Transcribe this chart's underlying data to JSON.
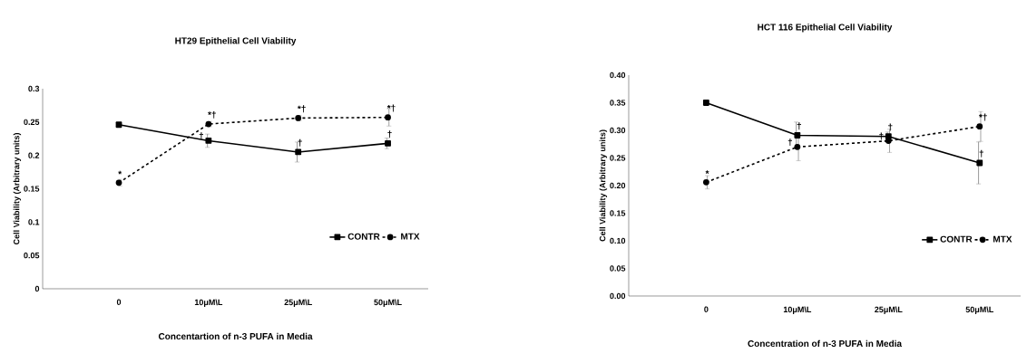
{
  "chart_data": [
    {
      "type": "line",
      "title": "HT29 Epithelial Cell Viability",
      "xlabel": "Concentartion of n-3 PUFA in Media",
      "ylabel": "Cell Viability (Arbitrary units)",
      "categories": [
        "0",
        "10μM\\L",
        "25μM\\L",
        "50μM\\L"
      ],
      "series": [
        {
          "name": "CONTR",
          "color": "#000000",
          "marker": "square",
          "line_style": "solid",
          "values": [
            0.246,
            0.222,
            0.205,
            0.218
          ],
          "errors": [
            0.003,
            0.01,
            0.015,
            0.008
          ]
        },
        {
          "name": "MTX",
          "color": "#000000",
          "marker": "circle",
          "line_style": "dashed",
          "values": [
            0.159,
            0.247,
            0.256,
            0.257
          ],
          "errors": [
            0.005,
            0.004,
            0.004,
            0.013
          ]
        }
      ],
      "ylim": [
        0,
        0.3
      ],
      "yticks": [
        0,
        0.05,
        0.1,
        0.15,
        0.2,
        0.25,
        0.3
      ],
      "grid": false,
      "legend": "bottom right",
      "annotations": [
        {
          "text": "*",
          "x": "0",
          "y": 0.159
        },
        {
          "text": "*†",
          "x": "10μM\\L",
          "y": 0.247
        },
        {
          "text": "*†",
          "x": "25μM\\L",
          "y": 0.256
        },
        {
          "text": "*†",
          "x": "50μM\\L",
          "y": 0.257
        },
        {
          "text": "†",
          "x": "10μM\\L",
          "y": 0.222
        },
        {
          "text": "†",
          "x": "25μM\\L",
          "y": 0.205
        },
        {
          "text": "†",
          "x": "50μM\\L",
          "y": 0.218
        }
      ]
    },
    {
      "type": "line",
      "title": "HCT 116 Epithelial Cell Viability",
      "xlabel": "Concentration  of n-3 PUFA in Media",
      "ylabel": "Cell Viability (Arbitrary units)",
      "categories": [
        "0",
        "10μM\\L",
        "25μM\\L",
        "50μM\\L"
      ],
      "series": [
        {
          "name": "CONTR",
          "color": "#000000",
          "marker": "square",
          "line_style": "solid",
          "values": [
            0.35,
            0.291,
            0.289,
            0.241
          ],
          "errors": [
            0.003,
            0.024,
            0.008,
            0.038
          ]
        },
        {
          "name": "MTX",
          "color": "#000000",
          "marker": "circle",
          "line_style": "dashed",
          "values": [
            0.206,
            0.27,
            0.281,
            0.307
          ],
          "errors": [
            0.012,
            0.025,
            0.021,
            0.027
          ]
        }
      ],
      "ylim": [
        0,
        0.4
      ],
      "yticks": [
        {
          "value": 0,
          "label": "0.00"
        },
        {
          "value": 0.05,
          "label": "0.05"
        },
        {
          "value": 0.1,
          "label": "0.10"
        },
        {
          "value": 0.15,
          "label": "0.15"
        },
        {
          "value": 0.2,
          "label": "0.20"
        },
        {
          "value": 0.25,
          "label": "0.25"
        },
        {
          "value": 0.3,
          "label": "0.30"
        },
        {
          "value": 0.35,
          "label": "0.35"
        },
        {
          "value": 0.4,
          "label": "0.40"
        }
      ],
      "grid": false,
      "legend": "bottom right",
      "annotations": [
        {
          "text": "*",
          "x": "0",
          "y": 0.206
        },
        {
          "text": "†",
          "x": "10μM\\L",
          "y": 0.291
        },
        {
          "text": "†",
          "x": "25μM\\L",
          "y": 0.289
        },
        {
          "text": "*†",
          "x": "50μM\\L",
          "y": 0.307
        },
        {
          "text": "†",
          "x": "10μM\\L",
          "y": 0.27
        },
        {
          "text": "†",
          "x": "25μM\\L",
          "y": 0.281
        },
        {
          "text": "†",
          "x": "50μM\\L",
          "y": 0.241
        }
      ]
    }
  ]
}
